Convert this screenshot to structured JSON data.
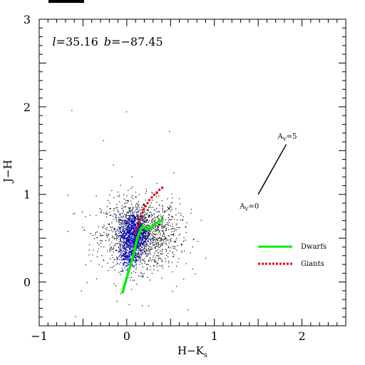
{
  "chart_data": {
    "type": "scatter",
    "title": "",
    "xlabel": "H−K",
    "xlabel_sub": "s",
    "ylabel": "J−H",
    "xlim": [
      -1,
      2.5
    ],
    "ylim": [
      -0.5,
      3
    ],
    "xticks": [
      -1,
      0,
      1,
      2
    ],
    "xtick_labels": [
      "−1",
      "0",
      "1",
      "2"
    ],
    "yticks": [
      0,
      1,
      2,
      3
    ],
    "ytick_labels": [
      "0",
      "1",
      "2",
      "3"
    ],
    "annotation": {
      "l_sym": "l",
      "l_val": "=35.16",
      "b_sym": "b",
      "b_val": "=−87.45"
    },
    "reddening_vector": {
      "start": [
        1.5,
        1.0
      ],
      "end": [
        1.82,
        1.57
      ],
      "start_label_base": "A",
      "start_label_sub": "V",
      "start_label_val": "=0",
      "end_label_base": "A",
      "end_label_sub": "V",
      "end_label_val": "=5"
    },
    "series": [
      {
        "name": "Dwarfs",
        "color": "#00ee00",
        "style": "solid",
        "x": [
          -0.05,
          -0.03,
          0.0,
          0.03,
          0.06,
          0.08,
          0.1,
          0.12,
          0.15,
          0.18,
          0.21,
          0.23,
          0.26,
          0.3,
          0.34,
          0.38,
          0.42
        ],
        "y": [
          -0.13,
          -0.05,
          0.05,
          0.15,
          0.25,
          0.33,
          0.42,
          0.5,
          0.58,
          0.64,
          0.62,
          0.6,
          0.62,
          0.64,
          0.67,
          0.7,
          0.71
        ]
      },
      {
        "name": "Giants",
        "color": "#ee0000",
        "style": "dashed",
        "x": [
          0.1,
          0.12,
          0.14,
          0.16,
          0.18,
          0.2,
          0.23,
          0.26,
          0.3,
          0.34,
          0.38,
          0.42
        ],
        "y": [
          0.55,
          0.62,
          0.68,
          0.74,
          0.79,
          0.84,
          0.89,
          0.94,
          0.98,
          1.02,
          1.06,
          1.09
        ]
      }
    ],
    "scatter_field": {
      "name": "stars",
      "colors": [
        "#000000",
        "#0000cc"
      ]
    },
    "legend": {
      "placement": "right",
      "entries": [
        "Dwarfs",
        "Giants"
      ]
    },
    "grid": false
  }
}
